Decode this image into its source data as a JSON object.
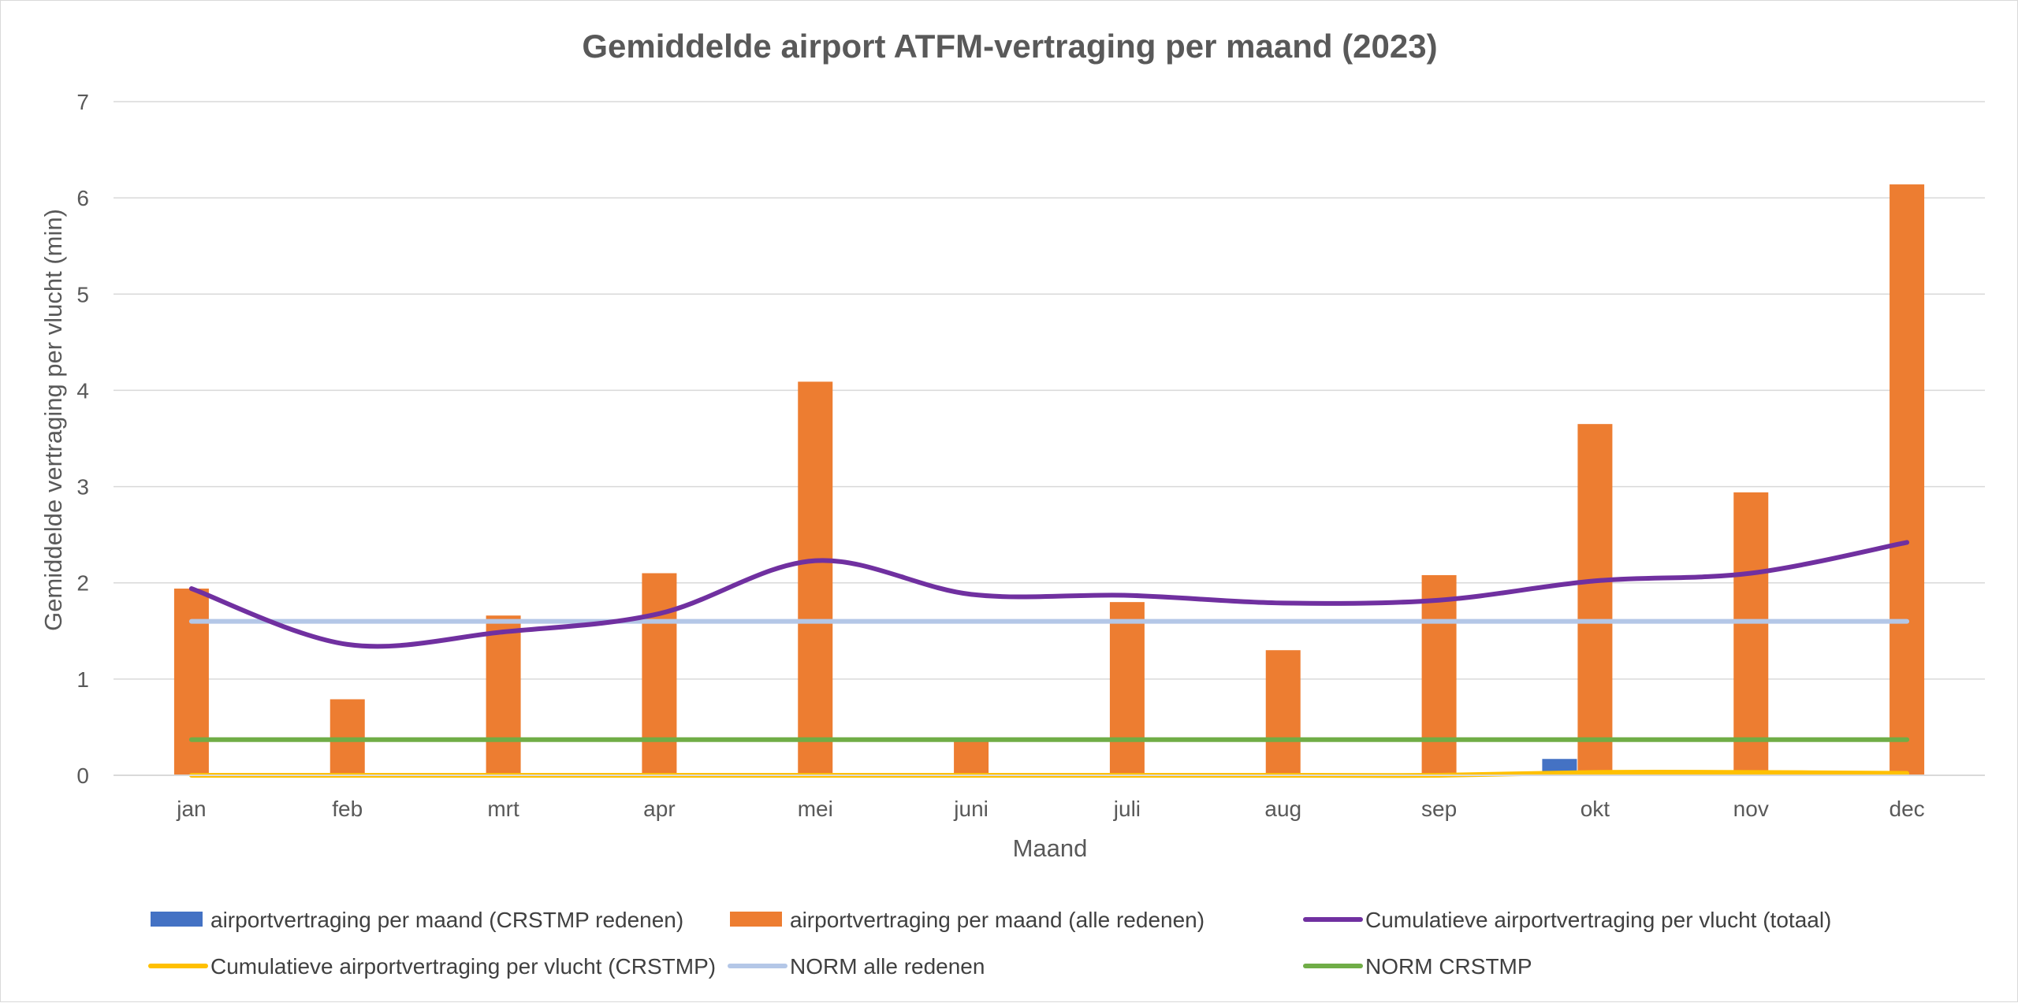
{
  "chart_data": {
    "type": "bar",
    "title": "Gemiddelde airport ATFM-vertraging per maand (2023)",
    "xlabel": "Maand",
    "ylabel": "Gemiddelde vertraging per vlucht (min)",
    "ylim": [
      0,
      7
    ],
    "yticks": [
      "0",
      "1",
      "2",
      "3",
      "4",
      "5",
      "6",
      "7"
    ],
    "grid": true,
    "legend_position": "bottom",
    "categories": [
      "jan",
      "feb",
      "mrt",
      "apr",
      "mei",
      "juni",
      "juli",
      "aug",
      "sep",
      "okt",
      "nov",
      "dec"
    ],
    "series": [
      {
        "name": "airportvertraging per maand (CRSTMP redenen)",
        "kind": "bar",
        "color": "#4472c4",
        "values": [
          0,
          0,
          0,
          0,
          0,
          0,
          0,
          0,
          0,
          0.17,
          0,
          0
        ]
      },
      {
        "name": "airportvertraging per maand (alle redenen)",
        "kind": "bar",
        "color": "#ed7d31",
        "values": [
          1.94,
          0.79,
          1.66,
          2.1,
          4.09,
          0.36,
          1.8,
          1.3,
          2.08,
          3.65,
          2.94,
          6.14
        ]
      },
      {
        "name": "Cumulatieve airportvertraging per vlucht (totaal)",
        "kind": "line",
        "smooth": true,
        "color": "#7030a0",
        "values": [
          1.94,
          1.36,
          1.49,
          1.68,
          2.23,
          1.88,
          1.87,
          1.79,
          1.82,
          2.02,
          2.1,
          2.42
        ]
      },
      {
        "name": "Cumulatieve airportvertraging per vlucht (CRSTMP)",
        "kind": "line",
        "smooth": true,
        "color": "#ffc000",
        "values": [
          0,
          0,
          0,
          0,
          0,
          0,
          0,
          0,
          0,
          0.03,
          0.03,
          0.02
        ]
      },
      {
        "name": "NORM alle redenen",
        "kind": "line",
        "smooth": false,
        "color": "#b4c7e7",
        "values": [
          1.6,
          1.6,
          1.6,
          1.6,
          1.6,
          1.6,
          1.6,
          1.6,
          1.6,
          1.6,
          1.6,
          1.6
        ]
      },
      {
        "name": "NORM CRSTMP",
        "kind": "line",
        "smooth": false,
        "color": "#70ad47",
        "values": [
          0.37,
          0.37,
          0.37,
          0.37,
          0.37,
          0.37,
          0.37,
          0.37,
          0.37,
          0.37,
          0.37,
          0.37
        ]
      }
    ]
  }
}
